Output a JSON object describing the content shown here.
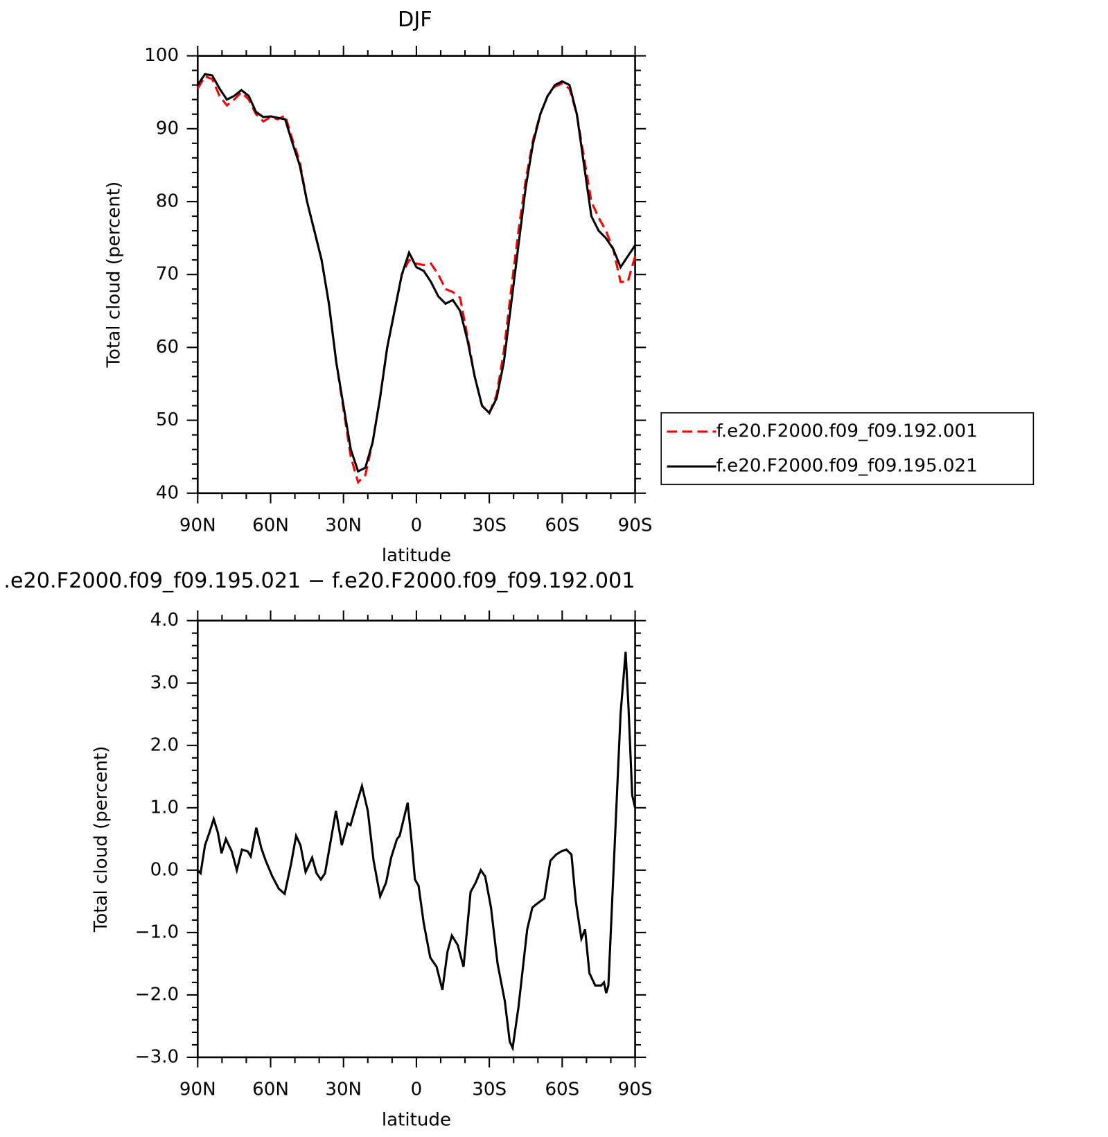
{
  "chart_data": [
    {
      "type": "line",
      "title": "DJF",
      "x_label": "latitude",
      "y_label": "Total cloud (percent)",
      "xlim": [
        90,
        -90
      ],
      "xticks": [
        {
          "value": 90,
          "label": "90N"
        },
        {
          "value": 60,
          "label": "60N"
        },
        {
          "value": 30,
          "label": "30N"
        },
        0,
        {
          "value": -30,
          "label": "30S"
        },
        {
          "value": -60,
          "label": "60S"
        },
        {
          "value": -90,
          "label": "90S"
        }
      ],
      "ylim": [
        40,
        100
      ],
      "yticks": [
        40,
        50,
        60,
        70,
        80,
        90,
        100
      ],
      "legend": "outside-right",
      "x": [
        90,
        87,
        84,
        81,
        78,
        75,
        72,
        69,
        66,
        63,
        60,
        57,
        54,
        51,
        48,
        45,
        42,
        39,
        36,
        33,
        30,
        27,
        24,
        21,
        18,
        15,
        12,
        9,
        6,
        3,
        0,
        -3,
        -6,
        -9,
        -12,
        -15,
        -18,
        -21,
        -24,
        -27,
        -30,
        -33,
        -36,
        -39,
        -42,
        -45,
        -48,
        -51,
        -54,
        -57,
        -60,
        -63,
        -66,
        -69,
        -72,
        -75,
        -78,
        -81,
        -84,
        -87,
        -90
      ],
      "series": [
        {
          "name": "f.e20.F2000.f09_f09.192.001",
          "color": "#ff0000",
          "line_style": "dashed",
          "values": [
            95.5,
            97.2,
            96.8,
            94.5,
            93.2,
            94,
            95,
            94,
            92,
            91,
            91.6,
            91.3,
            91.8,
            88.5,
            85.5,
            80,
            76,
            72,
            66,
            58,
            51.5,
            45,
            41.5,
            42.5,
            47,
            53,
            60,
            65,
            70,
            72,
            71.5,
            71.3,
            71.5,
            70,
            68,
            67.6,
            66.8,
            61.5,
            56,
            52,
            51,
            53.5,
            59.5,
            68,
            76,
            83,
            88.5,
            92,
            94.5,
            95.8,
            96.2,
            95.5,
            92,
            86,
            80,
            77.8,
            76,
            73.5,
            69,
            69,
            72.5
          ]
        },
        {
          "name": "f.e20.F2000.f09_f09.195.021",
          "color": "#000000",
          "line_style": "solid",
          "values": [
            96,
            97.5,
            97.3,
            95.5,
            94,
            94.5,
            95.3,
            94.5,
            92.3,
            91.6,
            91.7,
            91.5,
            91.3,
            88,
            85,
            80,
            76,
            72,
            66,
            58,
            52,
            46,
            43,
            43.5,
            47,
            53,
            60,
            65,
            70,
            73,
            71,
            70.5,
            69,
            67,
            66,
            66.5,
            65,
            61,
            56,
            52,
            51,
            53,
            58,
            66,
            74,
            82,
            88,
            92,
            94.5,
            96,
            96.5,
            96,
            92,
            85,
            78,
            76,
            75,
            73.5,
            71,
            72.5,
            74
          ]
        }
      ]
    },
    {
      "type": "line",
      "title": ".e20.F2000.f09_f09.195.021 − f.e20.F2000.f09_f09.192.001",
      "x_label": "latitude",
      "y_label": "Total cloud (percent)",
      "xlim": [
        90,
        -90
      ],
      "xticks": [
        {
          "value": 90,
          "label": "90N"
        },
        {
          "value": 60,
          "label": "60N"
        },
        {
          "value": 30,
          "label": "30N"
        },
        0,
        {
          "value": -30,
          "label": "30S"
        },
        {
          "value": -60,
          "label": "60S"
        },
        {
          "value": -90,
          "label": "90S"
        }
      ],
      "ylim": [
        -3,
        4
      ],
      "yticks": [
        {
          "value": -3,
          "label": "−3.0"
        },
        {
          "value": -2,
          "label": "−2.0"
        },
        {
          "value": -1,
          "label": "−1.0"
        },
        {
          "value": 0,
          "label": "0.0"
        },
        {
          "value": 1,
          "label": "1.0"
        },
        {
          "value": 2,
          "label": "2.0"
        },
        {
          "value": 3,
          "label": "3.0"
        },
        {
          "value": 4,
          "label": "4.0"
        }
      ],
      "color": "#000000",
      "x": [
        90,
        88.8,
        87,
        85.2,
        83.4,
        81.7,
        80.2,
        78.4,
        76,
        73.9,
        71.8,
        69.4,
        68.2,
        65.9,
        63.8,
        62,
        59.3,
        56.6,
        54.2,
        51.6,
        49.5,
        47.7,
        45.6,
        42.9,
        41.1,
        39.3,
        37.6,
        33.1,
        30.7,
        28.3,
        27.1,
        24.7,
        22.4,
        20,
        17.6,
        14.9,
        12.5,
        10.4,
        8,
        6.9,
        3.6,
        2.1,
        0.6,
        -0.9,
        -3,
        -5.7,
        -8.3,
        -10.7,
        -12.8,
        -14.6,
        -17,
        -19.4,
        -22.3,
        -24.4,
        -26.5,
        -28.3,
        -30.7,
        -33.4,
        -36.4,
        -38.4,
        -39.6,
        -42,
        -45.6,
        -47.7,
        -49.2,
        -51,
        -52.7,
        -55.1,
        -57.5,
        -59.6,
        -61.7,
        -63.8,
        -65.6,
        -67.9,
        -69.4,
        -71.2,
        -73.6,
        -76,
        -77.2,
        -78.1,
        -79,
        -80.8,
        -84,
        -86.1,
        -87.3,
        -88.8,
        -90
      ],
      "values": [
        0,
        -0.05,
        0.4,
        0.6,
        0.82,
        0.6,
        0.27,
        0.5,
        0.3,
        0,
        0.33,
        0.3,
        0.22,
        0.68,
        0.35,
        0.15,
        -0.1,
        -0.3,
        -0.38,
        0.1,
        0.55,
        0.4,
        -0.03,
        0.2,
        -0.05,
        -0.15,
        -0.05,
        0.95,
        0.4,
        0.75,
        0.72,
        1.05,
        1.35,
        0.95,
        0.15,
        -0.42,
        -0.2,
        0.2,
        0.5,
        0.55,
        1.08,
        0.5,
        -0.15,
        -0.25,
        -0.85,
        -1.4,
        -1.55,
        -1.92,
        -1.3,
        -1.05,
        -1.2,
        -1.55,
        -0.35,
        -0.2,
        0,
        -0.1,
        -0.6,
        -1.5,
        -2.1,
        -2.75,
        -2.85,
        -2.2,
        -0.95,
        -0.6,
        -0.55,
        -0.5,
        -0.45,
        0.15,
        0.25,
        0.3,
        0.33,
        0.25,
        -0.5,
        -1.1,
        -0.95,
        -1.65,
        -1.85,
        -1.85,
        -1.8,
        -1.97,
        -1.85,
        -0.3,
        2.5,
        3.5,
        2.6,
        1.2,
        1.0
      ]
    }
  ]
}
